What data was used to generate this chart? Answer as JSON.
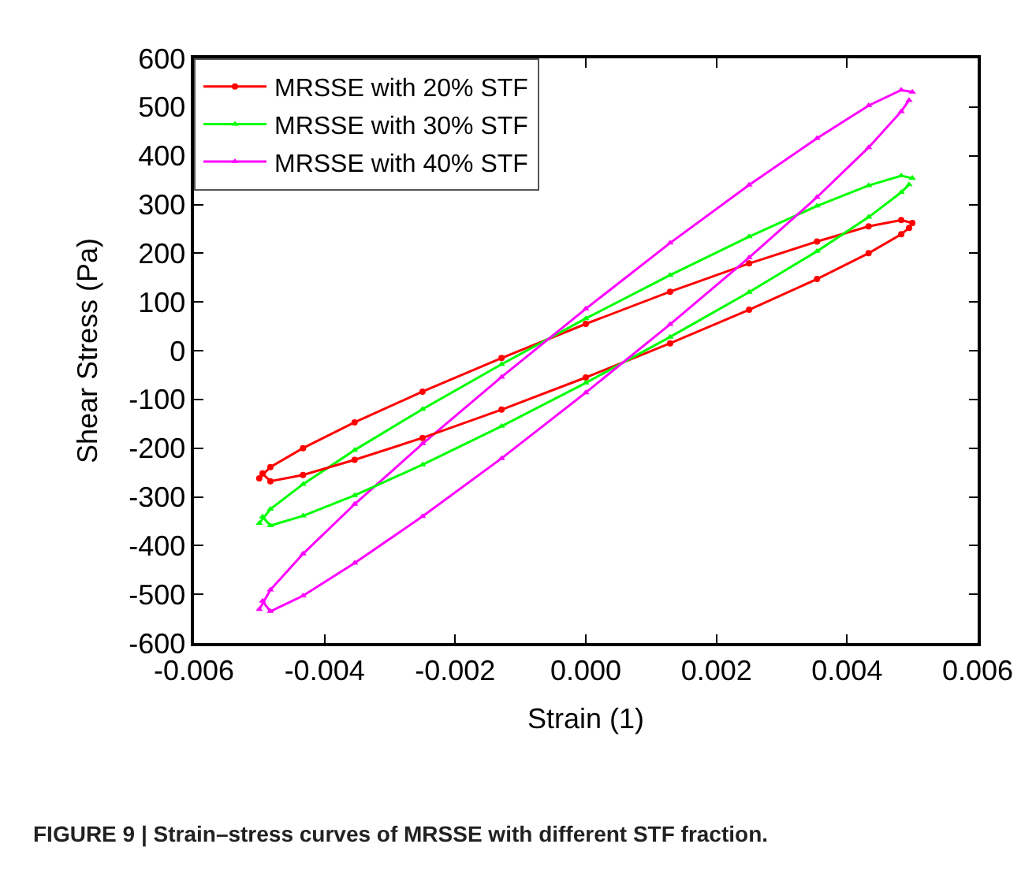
{
  "chart_data": {
    "type": "line",
    "xlabel": "Strain (1)",
    "ylabel": "Shear Stress (Pa)",
    "xlim": [
      -0.006,
      0.006
    ],
    "xticks": [
      {
        "value": -0.006,
        "label": "-0.006"
      },
      {
        "value": -0.004,
        "label": "-0.004"
      },
      {
        "value": -0.002,
        "label": "-0.002"
      },
      {
        "value": 0,
        "label": "0.000"
      },
      {
        "value": 0.002,
        "label": "0.002"
      },
      {
        "value": 0.004,
        "label": "0.004"
      },
      {
        "value": 0.006,
        "label": "0.006"
      }
    ],
    "ylim": [
      -600,
      600
    ],
    "yticks": [
      -600,
      -500,
      -400,
      -300,
      -200,
      -100,
      0,
      100,
      200,
      300,
      400,
      500,
      600
    ],
    "legend": "top left",
    "line_style": "solid",
    "series": [
      {
        "name": "MRSSE with 20% STF",
        "color": "#ff0000",
        "marker": "circle",
        "x": [
          -0.005,
          -0.00483,
          -0.00433,
          -0.00354,
          -0.0025,
          -0.00129,
          0,
          0.00129,
          0.0025,
          0.00354,
          0.00433,
          0.00483,
          0.005
        ],
        "values": [
          -262,
          -239,
          -200,
          -147,
          -84,
          -15,
          55,
          121,
          179,
          224,
          255,
          268,
          262
        ]
      },
      {
        "name": "MRSSE with 30% STF",
        "color": "#00ff00",
        "marker": "triangle",
        "x": [
          -0.005,
          -0.00483,
          -0.00433,
          -0.00354,
          -0.0025,
          -0.00129,
          0,
          0.00129,
          0.0025,
          0.00354,
          0.00433,
          0.00483,
          0.005
        ],
        "values": [
          -354,
          -325,
          -274,
          -204,
          -120,
          -28,
          66,
          155,
          234,
          297,
          339,
          359,
          354
        ]
      },
      {
        "name": "MRSSE with 40% STF",
        "color": "#ff00ff",
        "marker": "triangle",
        "x": [
          -0.005,
          -0.00483,
          -0.00433,
          -0.00354,
          -0.0025,
          -0.00129,
          0,
          0.00129,
          0.0025,
          0.00354,
          0.00433,
          0.00483,
          0.005
        ],
        "values": [
          -531,
          -491,
          -417,
          -315,
          -191,
          -54,
          86,
          221,
          340,
          436,
          503,
          535,
          531
        ]
      },
      {
        "color": "#ff0000",
        "marker": "circle",
        "x": [
          -0.00495,
          -0.00483,
          -0.00433,
          -0.00354,
          -0.0025,
          -0.00129,
          0,
          0.00129,
          0.0025,
          0.00354,
          0.00433,
          0.00483,
          0.00495
        ],
        "values": [
          -252,
          -268,
          -255,
          -224,
          -179,
          -121,
          -55,
          15,
          84,
          147,
          200,
          239,
          252
        ]
      },
      {
        "color": "#00ff00",
        "marker": "triangle",
        "x": [
          -0.00495,
          -0.00483,
          -0.00433,
          -0.00354,
          -0.0025,
          -0.00129,
          0,
          0.00129,
          0.0025,
          0.00354,
          0.00433,
          0.00483,
          0.00495
        ],
        "values": [
          -341,
          -359,
          -339,
          -297,
          -234,
          -155,
          -66,
          28,
          120,
          204,
          274,
          325,
          341
        ]
      },
      {
        "color": "#ff00ff",
        "marker": "triangle",
        "x": [
          -0.00495,
          -0.00483,
          -0.00433,
          -0.00354,
          -0.0025,
          -0.00129,
          0,
          0.00129,
          0.0025,
          0.00354,
          0.00433,
          0.00483,
          0.00495
        ],
        "values": [
          -514,
          -535,
          -503,
          -436,
          -340,
          -221,
          -86,
          54,
          191,
          315,
          417,
          491,
          514
        ]
      }
    ],
    "annotations": [
      "FIGURE 9 | Strain–stress curves of MRSSE with different STF fraction."
    ]
  }
}
